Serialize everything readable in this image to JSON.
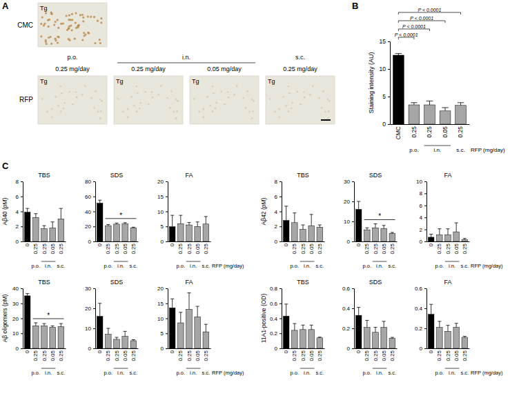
{
  "panel_labels": [
    "A",
    "B",
    "C"
  ],
  "panel_a": {
    "control": {
      "row_label": "CMC",
      "tag": "Tg"
    },
    "treated": {
      "row_label": "RFP",
      "tag": "Tg",
      "group_labels": [
        "p.o.",
        "i.n.",
        "s.c."
      ],
      "doses": [
        "0.25 mg/day",
        "0.25 mg/day",
        "0.05 mg/day",
        "0.25 mg/day"
      ]
    }
  },
  "chart_data": [
    {
      "type": "bar",
      "y_label": "Staining intensity (AU)",
      "x_label": "RFP (mg/day)",
      "categories": [
        "CMC",
        "0.25",
        "0.25",
        "0.05",
        "0.25"
      ],
      "group_labels": [
        "p.o.",
        "i.n.",
        "s.c."
      ],
      "values": [
        12.5,
        3.5,
        3.5,
        2.4,
        3.4
      ],
      "errors": [
        0.3,
        0.4,
        0.7,
        0.6,
        0.5
      ],
      "colors": [
        "#000000",
        "#a6a6a6",
        "#a6a6a6",
        "#a6a6a6",
        "#a6a6a6"
      ],
      "ylim": [
        0,
        15
      ],
      "yticks": [
        0,
        5,
        10,
        15
      ],
      "p_values": [
        "P < 0.0001",
        "P < 0.0001",
        "P < 0.0001",
        "P < 0.0001"
      ]
    },
    {
      "type": "bar",
      "title": "TBS",
      "y_label": "Aβ40 (pM)",
      "categories": [
        "0",
        "0.25",
        "0.25",
        "0.05",
        "0.25"
      ],
      "group_labels": [
        "p.o.",
        "i.n.",
        "s.c."
      ],
      "values": [
        3.9,
        3.2,
        1.7,
        1.8,
        3.0
      ],
      "errors": [
        0.5,
        0.5,
        0.4,
        0.8,
        1.4
      ],
      "colors": [
        "#000000",
        "#a6a6a6",
        "#a6a6a6",
        "#a6a6a6",
        "#a6a6a6"
      ],
      "ylim": [
        0,
        8
      ],
      "yticks": [
        0,
        2,
        4,
        6,
        8
      ]
    },
    {
      "type": "bar",
      "title": "SDS",
      "categories": [
        "0",
        "0.25",
        "0.25",
        "0.05",
        "0.25"
      ],
      "group_labels": [
        "p.o.",
        "i.n.",
        "s.c."
      ],
      "values": [
        51,
        21,
        23,
        23.5,
        18
      ],
      "errors": [
        4,
        1.5,
        1.5,
        1.5,
        1
      ],
      "colors": [
        "#000000",
        "#a6a6a6",
        "#a6a6a6",
        "#a6a6a6",
        "#a6a6a6"
      ],
      "ylim": [
        0,
        80
      ],
      "yticks": [
        0,
        20,
        40,
        60,
        80
      ],
      "significance": "*"
    },
    {
      "type": "bar",
      "title": "FA",
      "x_label": "RFP (mg/day)",
      "categories": [
        "0",
        "0.25",
        "0.25",
        "0.05",
        "0.25"
      ],
      "group_labels": [
        "p.o.",
        "i.n.",
        "s.c."
      ],
      "values": [
        4.9,
        5.9,
        5.5,
        5.0,
        5.8
      ],
      "errors": [
        3.8,
        2.8,
        0.8,
        1.5,
        2.5
      ],
      "colors": [
        "#000000",
        "#a6a6a6",
        "#a6a6a6",
        "#a6a6a6",
        "#a6a6a6"
      ],
      "ylim": [
        0,
        20
      ],
      "yticks": [
        0,
        5,
        10,
        15,
        20
      ]
    },
    {
      "type": "bar",
      "title": "TBS",
      "y_label": "Aβ42 (pM)",
      "categories": [
        "0",
        "0.25",
        "0.25",
        "0.05",
        "0.25"
      ],
      "group_labels": [
        "p.o.",
        "i.n.",
        "s.c."
      ],
      "values": [
        2.8,
        2.5,
        1.6,
        2.1,
        1.9
      ],
      "errors": [
        1.9,
        1.3,
        0.6,
        1.5,
        0.3
      ],
      "colors": [
        "#000000",
        "#a6a6a6",
        "#a6a6a6",
        "#a6a6a6",
        "#a6a6a6"
      ],
      "ylim": [
        0,
        8
      ],
      "yticks": [
        0,
        2,
        4,
        6,
        8
      ]
    },
    {
      "type": "bar",
      "title": "SDS",
      "categories": [
        "0",
        "0.25",
        "0.25",
        "0.05",
        "0.25"
      ],
      "group_labels": [
        "p.o.",
        "i.n.",
        "s.c."
      ],
      "values": [
        16,
        5.8,
        6.8,
        6.5,
        4
      ],
      "errors": [
        4,
        1,
        2,
        1.5,
        0.5
      ],
      "colors": [
        "#000000",
        "#a6a6a6",
        "#a6a6a6",
        "#a6a6a6",
        "#a6a6a6"
      ],
      "ylim": [
        0,
        30
      ],
      "yticks": [
        0,
        10,
        20,
        30
      ],
      "significance": "*"
    },
    {
      "type": "bar",
      "title": "FA",
      "x_label": "RFP (mg/day)",
      "categories": [
        "0",
        "0.25",
        "0.25",
        "0.05",
        "0.25"
      ],
      "group_labels": [
        "p.o.",
        "i.n.",
        "s.c."
      ],
      "values": [
        0.7,
        1.1,
        1.1,
        1.6,
        0.3
      ],
      "errors": [
        0.5,
        1,
        1,
        1.5,
        0.2
      ],
      "colors": [
        "#000000",
        "#a6a6a6",
        "#a6a6a6",
        "#a6a6a6",
        "#a6a6a6"
      ],
      "ylim": [
        0,
        10
      ],
      "yticks": [
        0,
        2,
        4,
        6,
        8,
        10
      ]
    },
    {
      "type": "bar",
      "title": "TBS",
      "y_label": "Aβ oligomers (pM)",
      "categories": [
        "0",
        "0.25",
        "0.25",
        "0.05",
        "0.25"
      ],
      "group_labels": [
        "p.o.",
        "i.n.",
        "s.c."
      ],
      "values": [
        35,
        15,
        15,
        14,
        14.5
      ],
      "errors": [
        1.5,
        2,
        1.5,
        1,
        2
      ],
      "colors": [
        "#000000",
        "#a6a6a6",
        "#a6a6a6",
        "#a6a6a6",
        "#a6a6a6"
      ],
      "ylim": [
        0,
        40
      ],
      "yticks": [
        0,
        10,
        20,
        30,
        40
      ],
      "significance": "*"
    },
    {
      "type": "bar",
      "title": "SDS",
      "categories": [
        "0",
        "0.25",
        "0.25",
        "0.05",
        "0.25"
      ],
      "group_labels": [
        "p.o.",
        "i.n.",
        "s.c."
      ],
      "values": [
        16,
        7,
        4.5,
        6,
        3.8
      ],
      "errors": [
        6.5,
        3,
        1,
        2.5,
        0.5
      ],
      "colors": [
        "#000000",
        "#a6a6a6",
        "#a6a6a6",
        "#a6a6a6",
        "#a6a6a6"
      ],
      "ylim": [
        0,
        30
      ],
      "yticks": [
        0,
        10,
        20,
        30
      ]
    },
    {
      "type": "bar",
      "title": "FA",
      "x_label": "RFP (mg/day)",
      "categories": [
        "0",
        "0.25",
        "0.25",
        "0.05",
        "0.25"
      ],
      "group_labels": [
        "p.o.",
        "i.n.",
        "s.c."
      ],
      "values": [
        13.5,
        8.5,
        13,
        10.5,
        5.5
      ],
      "errors": [
        3,
        3.5,
        5.5,
        3.5,
        2.5
      ],
      "colors": [
        "#000000",
        "#a6a6a6",
        "#a6a6a6",
        "#a6a6a6",
        "#a6a6a6"
      ],
      "ylim": [
        0,
        20
      ],
      "yticks": [
        0,
        5,
        10,
        15,
        20
      ]
    },
    {
      "type": "bar",
      "title": "TBS",
      "y_label": "11A1-positive (OD)",
      "categories": [
        "0",
        "0.25",
        "0.25",
        "0.05",
        "0.25"
      ],
      "group_labels": [
        "p.o.",
        "i.n.",
        "s.c."
      ],
      "values": [
        0.43,
        0.24,
        0.25,
        0.25,
        0.14
      ],
      "errors": [
        0.16,
        0.09,
        0.06,
        0.06,
        0.01
      ],
      "colors": [
        "#000000",
        "#a6a6a6",
        "#a6a6a6",
        "#a6a6a6",
        "#a6a6a6"
      ],
      "ylim": [
        0,
        0.8
      ],
      "yticks": [
        0,
        0.2,
        0.4,
        0.6,
        0.8
      ]
    },
    {
      "type": "bar",
      "title": "SDS",
      "categories": [
        "0",
        "0.25",
        "0.25",
        "0.05",
        "0.25"
      ],
      "group_labels": [
        "p.o.",
        "i.n.",
        "s.c."
      ],
      "values": [
        0.33,
        0.21,
        0.16,
        0.21,
        0.1
      ],
      "errors": [
        0.08,
        0.07,
        0.05,
        0.06,
        0.01
      ],
      "colors": [
        "#000000",
        "#a6a6a6",
        "#a6a6a6",
        "#a6a6a6",
        "#a6a6a6"
      ],
      "ylim": [
        0,
        0.6
      ],
      "yticks": [
        0,
        0.2,
        0.4,
        0.6
      ]
    },
    {
      "type": "bar",
      "title": "FA",
      "x_label": "RFP (mg/day)",
      "categories": [
        "0",
        "0.25",
        "0.25",
        "0.05",
        "0.25"
      ],
      "group_labels": [
        "p.o.",
        "i.n.",
        "s.c."
      ],
      "values": [
        0.34,
        0.21,
        0.17,
        0.21,
        0.11
      ],
      "errors": [
        0.1,
        0.06,
        0.06,
        0.04,
        0.01
      ],
      "colors": [
        "#000000",
        "#a6a6a6",
        "#a6a6a6",
        "#a6a6a6",
        "#a6a6a6"
      ],
      "ylim": [
        0,
        0.6
      ],
      "yticks": [
        0,
        0.2,
        0.4,
        0.6
      ]
    }
  ]
}
